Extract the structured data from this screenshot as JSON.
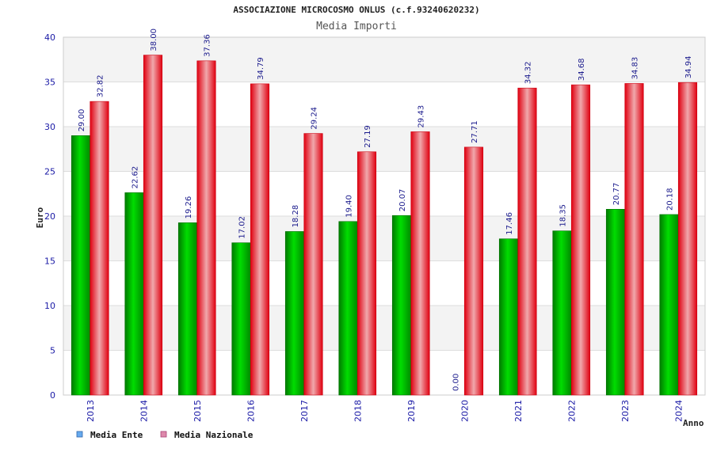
{
  "chart_data": {
    "type": "bar",
    "title": "ASSOCIAZIONE MICROCOSMO ONLUS (c.f.93240620232)",
    "subtitle": "Media Importi",
    "xlabel": "Anno",
    "ylabel": "Euro",
    "ylim": [
      0,
      40
    ],
    "yticks": [
      0,
      5,
      10,
      15,
      20,
      25,
      30,
      35,
      40
    ],
    "grid": true,
    "legend_position": "bottom-left",
    "categories": [
      "2013",
      "2014",
      "2015",
      "2016",
      "2017",
      "2018",
      "2019",
      "2020",
      "2021",
      "2022",
      "2023",
      "2024"
    ],
    "series": [
      {
        "name": "Media Ente",
        "values": [
          29.0,
          22.62,
          19.26,
          17.02,
          18.28,
          19.4,
          20.07,
          0.0,
          17.46,
          18.35,
          20.77,
          20.18
        ],
        "labels": [
          "29.00",
          "22.62",
          "19.26",
          "17.02",
          "18.28",
          "19.40",
          "20.07",
          "0.00",
          "17.46",
          "18.35",
          "20.77",
          "20.18"
        ],
        "color": "#00cc00",
        "legend_color": "#66aaee"
      },
      {
        "name": "Media Nazionale",
        "values": [
          32.82,
          38.0,
          37.36,
          34.79,
          29.24,
          27.19,
          29.43,
          27.71,
          34.32,
          34.68,
          34.83,
          34.94
        ],
        "labels": [
          "32.82",
          "38.00",
          "37.36",
          "34.79",
          "29.24",
          "27.19",
          "29.43",
          "27.71",
          "34.32",
          "34.68",
          "34.83",
          "34.94"
        ],
        "color": "#ee1111",
        "legend_color": "#dd88aa"
      }
    ]
  }
}
